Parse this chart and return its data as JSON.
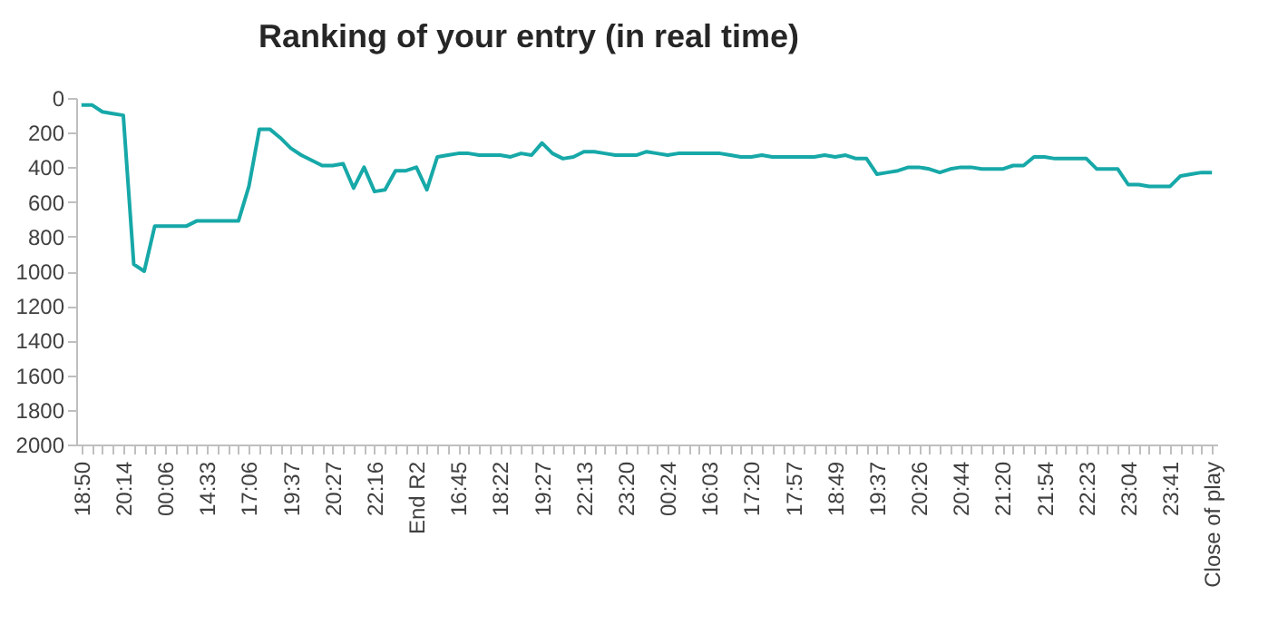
{
  "chart_data": {
    "type": "line",
    "title": "Ranking of your entry (in real time)",
    "categories": [
      "18:50",
      null,
      null,
      null,
      "20:14",
      null,
      null,
      null,
      "00:06",
      null,
      null,
      null,
      "14:33",
      null,
      null,
      null,
      "17:06",
      null,
      null,
      null,
      "19:37",
      null,
      null,
      null,
      "20:27",
      null,
      null,
      null,
      "22:16",
      null,
      null,
      null,
      "End R2",
      null,
      null,
      null,
      "16:45",
      null,
      null,
      null,
      "18:22",
      null,
      null,
      null,
      "19:27",
      null,
      null,
      null,
      "22:13",
      null,
      null,
      null,
      "23:20",
      null,
      null,
      null,
      "00:24",
      null,
      null,
      null,
      "16:03",
      null,
      null,
      null,
      "17:20",
      null,
      null,
      null,
      "17:57",
      null,
      null,
      null,
      "18:49",
      null,
      null,
      null,
      "19:37",
      null,
      null,
      null,
      "20:26",
      null,
      null,
      null,
      "20:44",
      null,
      null,
      null,
      "21:20",
      null,
      null,
      null,
      "21:54",
      null,
      null,
      null,
      "22:23",
      null,
      null,
      null,
      "23:04",
      null,
      null,
      null,
      "23:41",
      null,
      null,
      null,
      "Close of play"
    ],
    "series": [
      {
        "color": "#17a8a8",
        "values": [
          40,
          40,
          80,
          90,
          100,
          960,
          1000,
          740,
          740,
          740,
          740,
          710,
          710,
          710,
          710,
          710,
          510,
          180,
          180,
          230,
          290,
          330,
          360,
          390,
          390,
          380,
          520,
          400,
          540,
          530,
          420,
          420,
          400,
          530,
          340,
          330,
          320,
          320,
          330,
          330,
          330,
          340,
          320,
          330,
          260,
          320,
          350,
          340,
          310,
          310,
          320,
          330,
          330,
          330,
          310,
          320,
          330,
          320,
          320,
          320,
          320,
          320,
          330,
          340,
          340,
          330,
          340,
          340,
          340,
          340,
          340,
          330,
          340,
          330,
          350,
          350,
          440,
          430,
          420,
          400,
          400,
          410,
          430,
          410,
          400,
          400,
          410,
          410,
          410,
          390,
          390,
          340,
          340,
          350,
          350,
          350,
          350,
          410,
          410,
          410,
          500,
          500,
          510,
          510,
          510,
          450,
          440,
          430,
          430
        ]
      }
    ],
    "ylim": [
      2000,
      0
    ],
    "yticks": [
      0,
      200,
      400,
      600,
      800,
      1000,
      1200,
      1400,
      1600,
      1800,
      2000
    ],
    "grid": false,
    "line_style": "solid"
  }
}
